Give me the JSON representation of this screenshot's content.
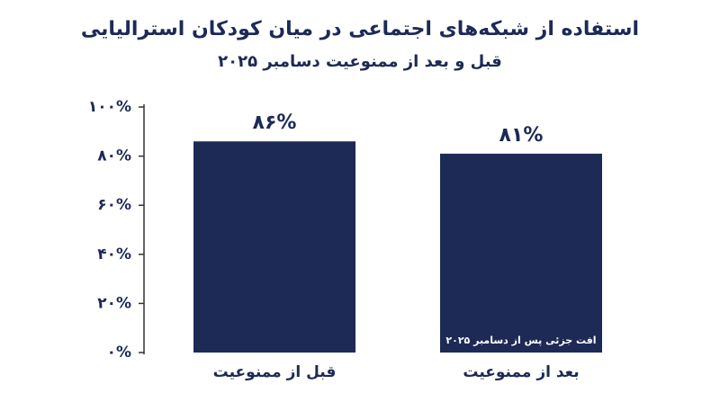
{
  "chart_data": {
    "type": "bar",
    "title": "استفاده از شبکه‌های اجتماعی در میان کودکان استرالیایی",
    "subtitle": "قبل و بعد از ممنوعیت دسامبر ۲۰۲۵",
    "categories": [
      "قبل از ممنوعیت",
      "بعد از ممنوعیت"
    ],
    "values": [
      86,
      81
    ],
    "value_labels": [
      "۸۶%",
      "۸۱%"
    ],
    "color": "#1c2a55",
    "annotation": "افت جزئی پس از دسامبر ۲۰۲۵",
    "ylim": [
      0,
      100
    ],
    "yticks": [
      {
        "value": 0,
        "label": "۰%"
      },
      {
        "value": 20,
        "label": "۲۰%"
      },
      {
        "value": 40,
        "label": "۴۰%"
      },
      {
        "value": 60,
        "label": "۶۰%"
      },
      {
        "value": 80,
        "label": "۸۰%"
      },
      {
        "value": 100,
        "label": "۱۰۰%"
      }
    ],
    "grid": false
  }
}
